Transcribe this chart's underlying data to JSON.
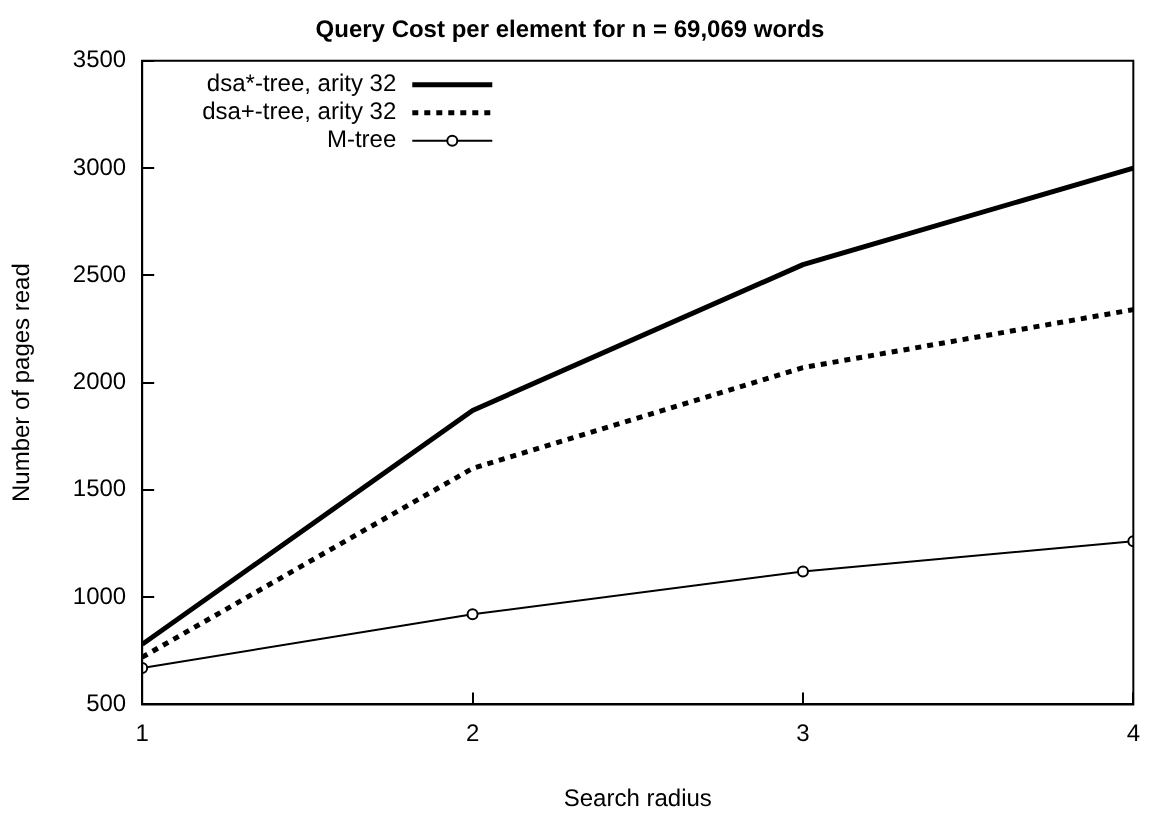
{
  "chart_data": {
    "type": "line",
    "title": "Query Cost per element for n = 69,069 words",
    "xlabel": "Search radius",
    "ylabel": "Number of pages read",
    "x": [
      1,
      2,
      3,
      4
    ],
    "xlim": [
      1,
      4
    ],
    "xticks": [
      1,
      2,
      3,
      4
    ],
    "ylim": [
      500,
      3500
    ],
    "yticks": [
      500,
      1000,
      1500,
      2000,
      2500,
      3000,
      3500
    ],
    "grid": false,
    "legend": "top left",
    "series": [
      {
        "name": "dsa*-tree, arity 32",
        "color": "#000000",
        "values": [
          780,
          1870,
          2550,
          3000
        ],
        "line_style": "solid",
        "marker": "none"
      },
      {
        "name": "dsa+-tree, arity 32",
        "color": "#000000",
        "values": [
          720,
          1600,
          2070,
          2340
        ],
        "line_style": "dotted",
        "marker": "none"
      },
      {
        "name": "M-tree",
        "color": "#000000",
        "values": [
          670,
          920,
          1120,
          1260
        ],
        "line_style": "solid",
        "marker": "circle"
      }
    ]
  }
}
